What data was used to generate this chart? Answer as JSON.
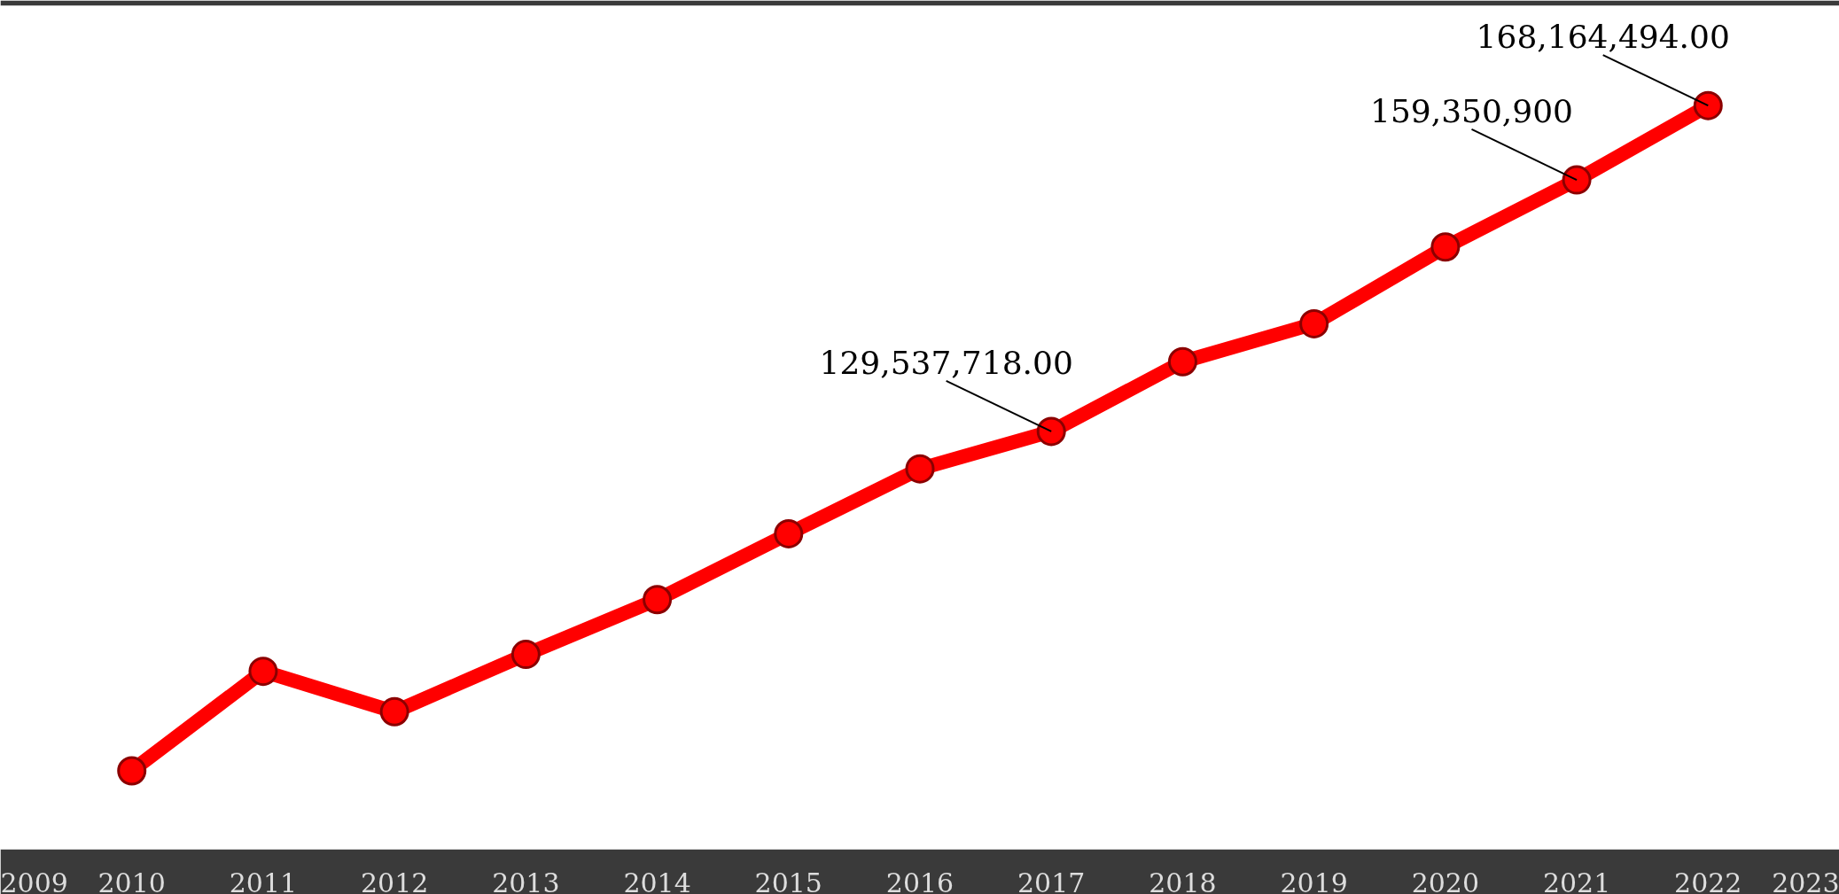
{
  "chart_data": {
    "type": "line",
    "x": [
      2010,
      2011,
      2012,
      2013,
      2014,
      2015,
      2016,
      2017,
      2018,
      2019,
      2020,
      2021,
      2022
    ],
    "values": [
      89300000,
      101100000,
      96300000,
      103100000,
      109600000,
      117400000,
      125100000,
      129537718,
      137800000,
      142300000,
      151400000,
      159350900,
      168164494
    ],
    "value_labels": [
      null,
      null,
      null,
      null,
      null,
      null,
      null,
      "129,537,718.00",
      null,
      null,
      null,
      "159,350,900",
      "168,164,494.00"
    ],
    "color": "#ff0000",
    "marker": "circle",
    "xlim": [
      2009,
      2023
    ],
    "xticks": [
      2009,
      2010,
      2011,
      2012,
      2013,
      2014,
      2015,
      2016,
      2017,
      2018,
      2019,
      2020,
      2021,
      2022,
      2023
    ],
    "ylim": [
      80000000,
      180000000
    ],
    "tick_labels": "x"
  }
}
